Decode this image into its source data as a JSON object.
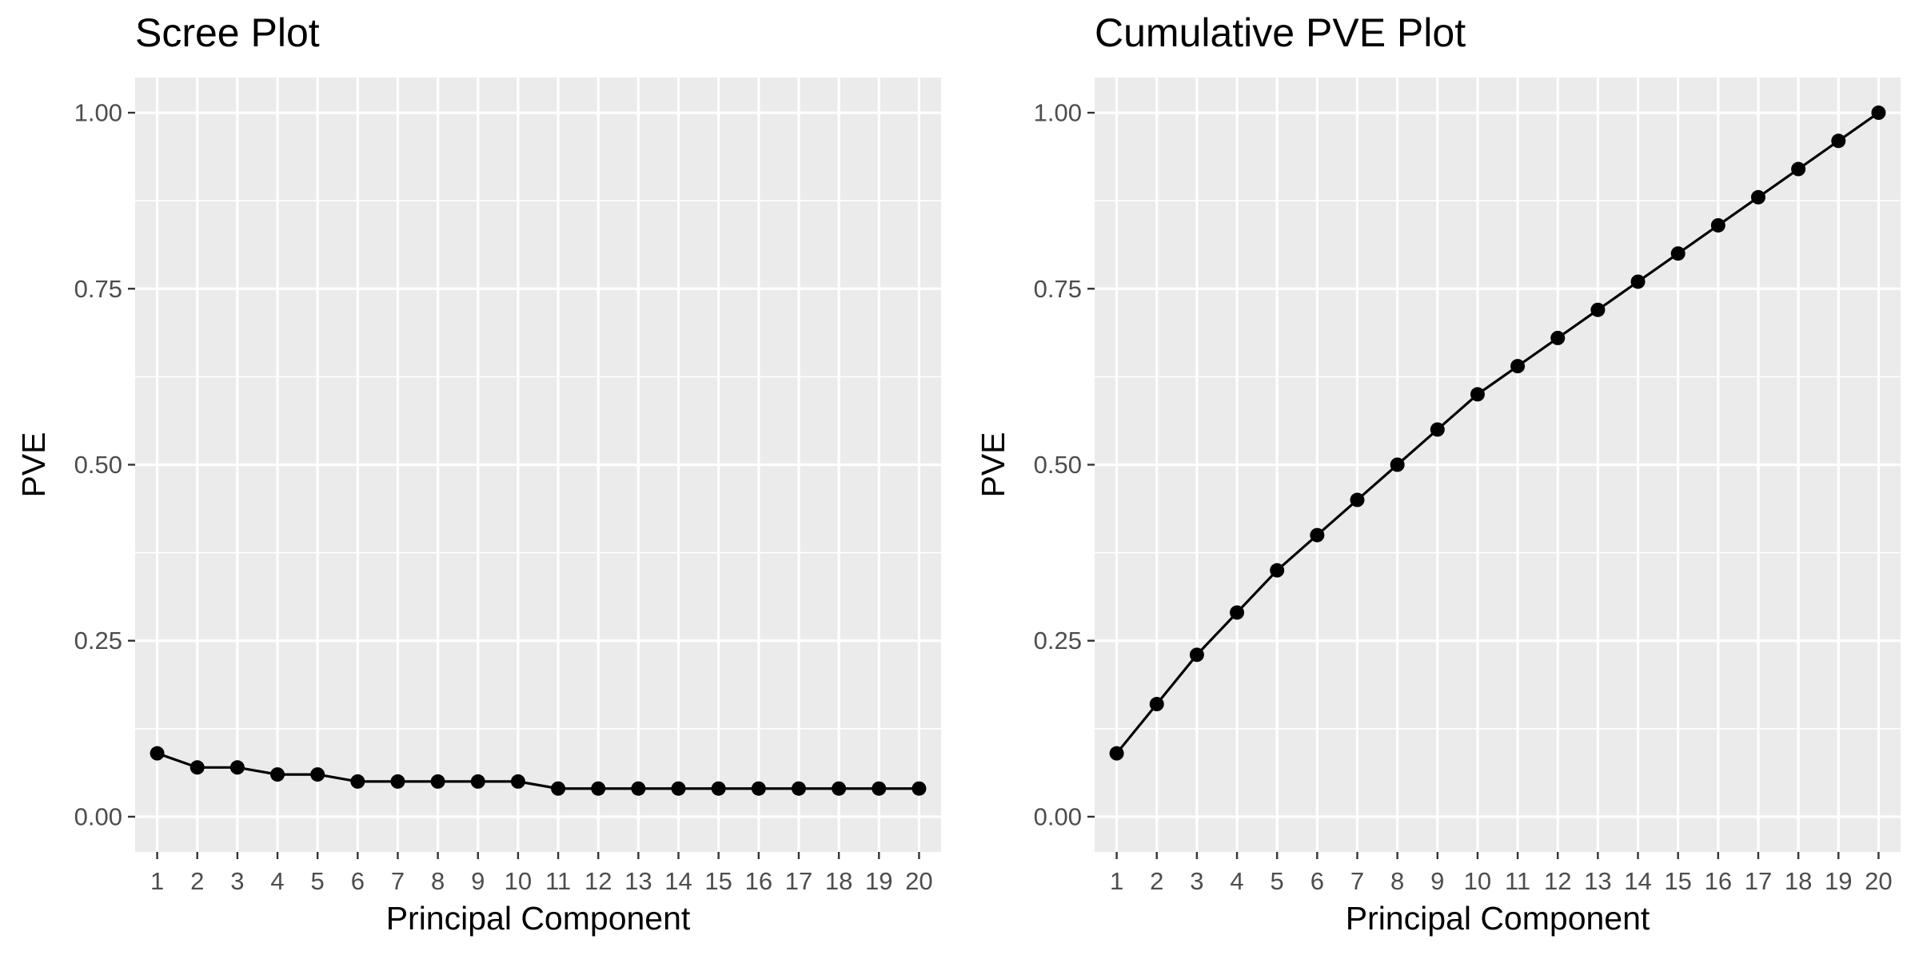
{
  "chart_data": [
    {
      "type": "line",
      "title": "Scree Plot",
      "xlabel": "Principal Component",
      "ylabel": "PVE",
      "x": [
        1,
        2,
        3,
        4,
        5,
        6,
        7,
        8,
        9,
        10,
        11,
        12,
        13,
        14,
        15,
        16,
        17,
        18,
        19,
        20
      ],
      "xticks": [
        "1",
        "2",
        "3",
        "4",
        "5",
        "6",
        "7",
        "8",
        "9",
        "10",
        "11",
        "12",
        "13",
        "14",
        "15",
        "16",
        "17",
        "18",
        "19",
        "20"
      ],
      "yticks": [
        0,
        0.25,
        0.5,
        0.75,
        1.0
      ],
      "ytick_labels": [
        "0.00",
        "0.25",
        "0.50",
        "0.75",
        "1.00"
      ],
      "ylim": [
        -0.05,
        1.05
      ],
      "xlim": [
        0.45,
        20.55
      ],
      "grid": true,
      "markers": true,
      "series": [
        {
          "values": [
            0.09,
            0.07,
            0.07,
            0.06,
            0.06,
            0.05,
            0.05,
            0.05,
            0.05,
            0.05,
            0.04,
            0.04,
            0.04,
            0.04,
            0.04,
            0.04,
            0.04,
            0.04,
            0.04,
            0.04
          ]
        }
      ]
    },
    {
      "type": "line",
      "title": "Cumulative PVE Plot",
      "xlabel": "Principal Component",
      "ylabel": "PVE",
      "x": [
        1,
        2,
        3,
        4,
        5,
        6,
        7,
        8,
        9,
        10,
        11,
        12,
        13,
        14,
        15,
        16,
        17,
        18,
        19,
        20
      ],
      "xticks": [
        "1",
        "2",
        "3",
        "4",
        "5",
        "6",
        "7",
        "8",
        "9",
        "10",
        "11",
        "12",
        "13",
        "14",
        "15",
        "16",
        "17",
        "18",
        "19",
        "20"
      ],
      "yticks": [
        0,
        0.25,
        0.5,
        0.75,
        1.0
      ],
      "ytick_labels": [
        "0.00",
        "0.25",
        "0.50",
        "0.75",
        "1.00"
      ],
      "ylim": [
        -0.05,
        1.05
      ],
      "xlim": [
        0.45,
        20.55
      ],
      "grid": true,
      "markers": true,
      "series": [
        {
          "values": [
            0.09,
            0.16,
            0.23,
            0.29,
            0.35,
            0.4,
            0.45,
            0.5,
            0.55,
            0.6,
            0.64,
            0.68,
            0.72,
            0.76,
            0.8,
            0.84,
            0.88,
            0.92,
            0.96,
            1.0
          ]
        }
      ]
    }
  ]
}
